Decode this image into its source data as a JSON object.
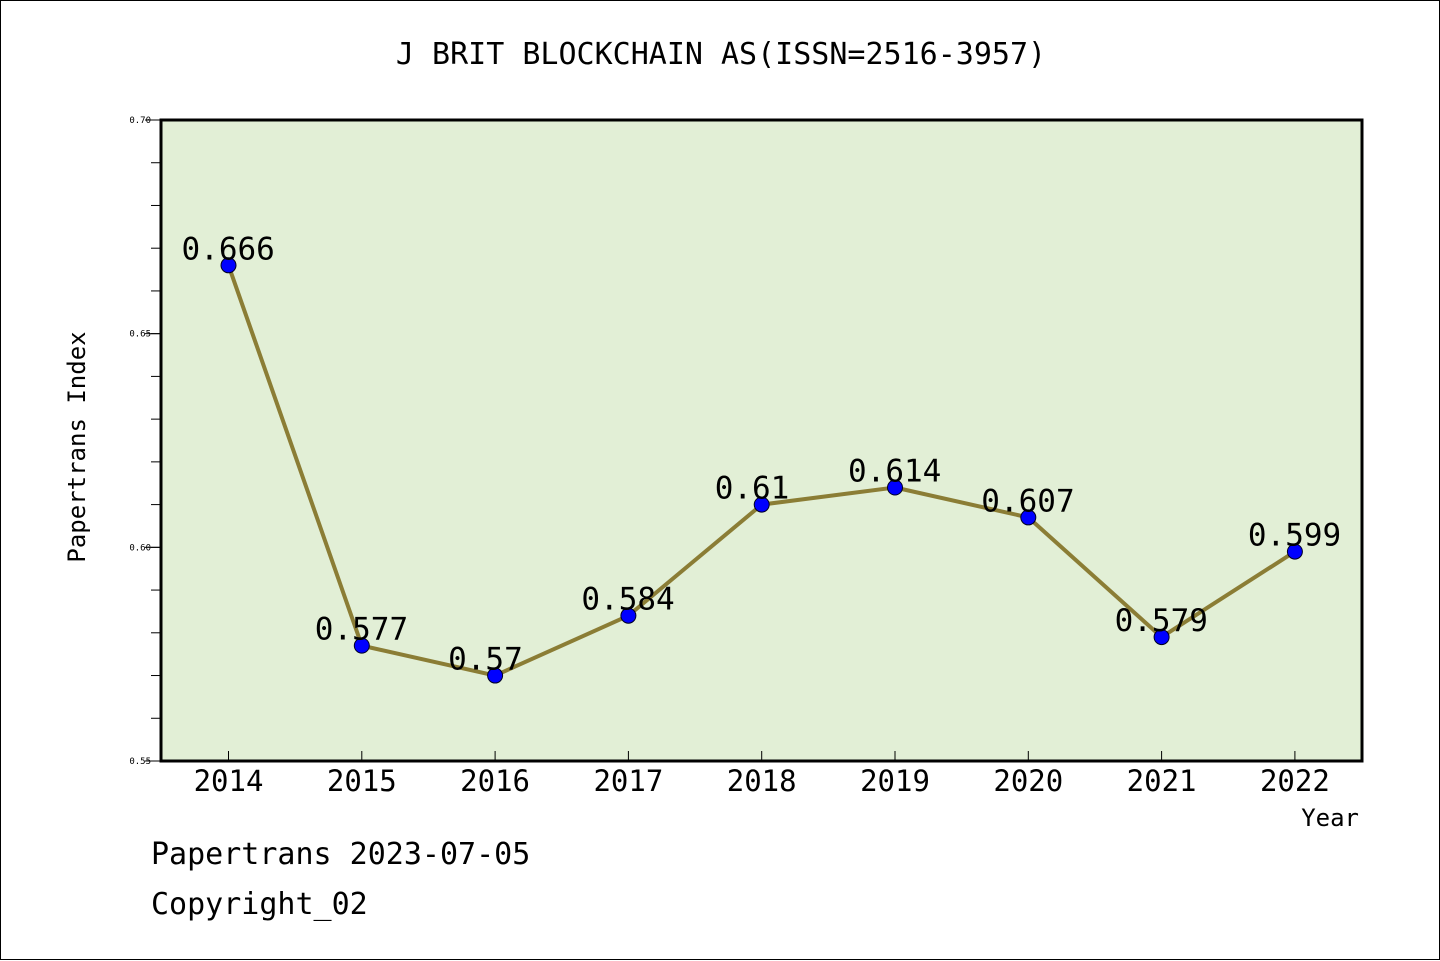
{
  "chart_data": {
    "type": "line",
    "title": "J BRIT BLOCKCHAIN AS(ISSN=2516-3957)",
    "xlabel": "Year",
    "ylabel": "Papertrans Index",
    "categories": [
      "2014",
      "2015",
      "2016",
      "2017",
      "2018",
      "2019",
      "2020",
      "2021",
      "2022"
    ],
    "series": [
      {
        "values": [
          0.666,
          0.577,
          0.57,
          0.584,
          0.61,
          0.614,
          0.607,
          0.579,
          0.599
        ],
        "labels": [
          "0.666",
          "0.577",
          "0.57",
          "0.584",
          "0.61",
          "0.614",
          "0.607",
          "0.579",
          "0.599"
        ]
      }
    ],
    "ylim": [
      0.55,
      0.7
    ],
    "yticks": [
      "0.55",
      "0.60",
      "0.65",
      "0.70"
    ],
    "grid": false,
    "colors": {
      "plot_background": "#e2efd6",
      "line": "#8b7d35",
      "marker": "#0000ff"
    }
  },
  "footer": {
    "date_line": "Papertrans 2023-07-05",
    "copyright": "Copyright_02"
  }
}
